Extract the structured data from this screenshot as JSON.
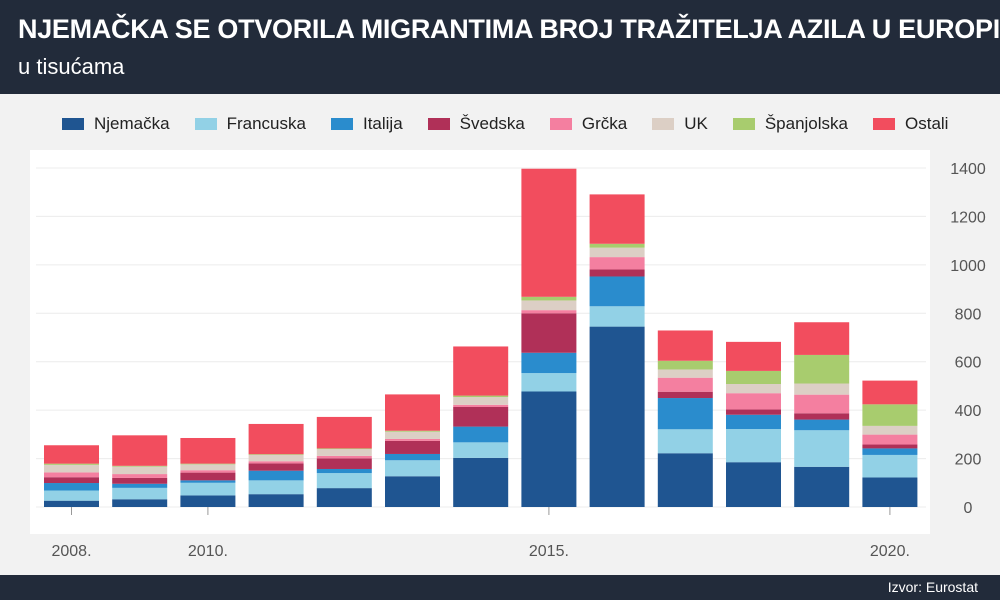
{
  "header": {
    "title": "NJEMAČKA SE OTVORILA MIGRANTIMA BROJ TRAŽITELJA AZILA U EUROPI,",
    "subtitle": "u tisućama"
  },
  "footer": {
    "source": "Izvor: Eurostat"
  },
  "colors": {
    "header_bg": "#222b3a",
    "plot_bg": "#ffffff",
    "page_bg": "#f2f2f2",
    "gridline": "#ececec",
    "axis_text": "#555555"
  },
  "chart_data": {
    "type": "bar",
    "stacked": true,
    "categories": [
      "2008.",
      "2009.",
      "2010.",
      "2011.",
      "2012.",
      "2013.",
      "2014.",
      "2015.",
      "2016.",
      "2017.",
      "2018.",
      "2019.",
      "2020."
    ],
    "x_tick_labels": [
      "2008.",
      "",
      "2010.",
      "",
      "",
      "",
      "",
      "2015.",
      "",
      "",
      "",
      "",
      "2020."
    ],
    "y_ticks": [
      0,
      200,
      400,
      600,
      800,
      1000,
      1200,
      1400
    ],
    "ylim": [
      0,
      1400
    ],
    "y_axis_position": "right",
    "grid": true,
    "legend_position": "top",
    "series": [
      {
        "name": "Njemačka",
        "color": "#1f5591",
        "values": [
          26,
          32,
          48,
          53,
          78,
          127,
          203,
          477,
          745,
          222,
          185,
          166,
          122
        ]
      },
      {
        "name": "Francuska",
        "color": "#92d1e6",
        "values": [
          42,
          47,
          52,
          57,
          62,
          66,
          64,
          76,
          84,
          99,
          137,
          151,
          93
        ]
      },
      {
        "name": "Italija",
        "color": "#2a8ccd",
        "values": [
          31,
          17,
          10,
          40,
          17,
          26,
          65,
          84,
          123,
          129,
          59,
          44,
          27
        ]
      },
      {
        "name": "Švedska",
        "color": "#b03058",
        "values": [
          24,
          24,
          32,
          30,
          44,
          54,
          81,
          163,
          29,
          26,
          22,
          26,
          16
        ]
      },
      {
        "name": "Grčka",
        "color": "#f47fa0",
        "values": [
          20,
          16,
          10,
          9,
          10,
          8,
          9,
          13,
          51,
          58,
          67,
          77,
          41
        ]
      },
      {
        "name": "UK",
        "color": "#dccfc5",
        "values": [
          31,
          31,
          24,
          26,
          28,
          30,
          32,
          40,
          39,
          34,
          38,
          46,
          36
        ]
      },
      {
        "name": "Španjolska",
        "color": "#a8cc6e",
        "values": [
          5,
          3,
          3,
          3,
          3,
          4,
          6,
          15,
          16,
          36,
          54,
          118,
          89
        ]
      },
      {
        "name": "Ostali",
        "color": "#f24d5e",
        "values": [
          76,
          126,
          106,
          125,
          130,
          150,
          203,
          529,
          204,
          125,
          120,
          135,
          98
        ]
      }
    ]
  }
}
